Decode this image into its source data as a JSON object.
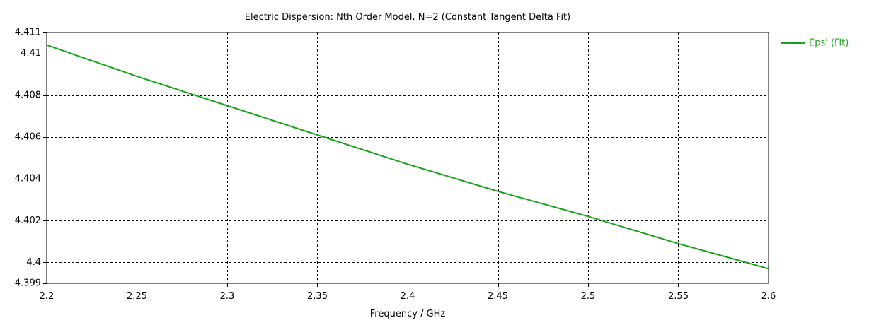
{
  "chart_data": {
    "type": "line",
    "title": "Electric Dispersion: Nth Order Model, N=2 (Constant Tangent Delta Fit)",
    "xlabel": "Frequency / GHz",
    "ylabel": "",
    "xlim": [
      2.2,
      2.6
    ],
    "ylim": [
      4.399,
      4.411
    ],
    "x_ticks": [
      2.2,
      2.25,
      2.3,
      2.35,
      2.4,
      2.45,
      2.5,
      2.55,
      2.6
    ],
    "x_tick_labels": [
      "2.2",
      "2.25",
      "2.3",
      "2.35",
      "2.4",
      "2.45",
      "2.5",
      "2.55",
      "2.6"
    ],
    "y_ticks": [
      4.399,
      4.4,
      4.402,
      4.404,
      4.406,
      4.408,
      4.41,
      4.411
    ],
    "y_tick_labels": [
      "4.399",
      "4.4",
      "4.402",
      "4.404",
      "4.406",
      "4.408",
      "4.41",
      "4.411"
    ],
    "y_grid_ticks": [
      4.4,
      4.402,
      4.404,
      4.406,
      4.408,
      4.41
    ],
    "x_grid_ticks": [
      2.25,
      2.3,
      2.35,
      2.4,
      2.45,
      2.5,
      2.55
    ],
    "grid": true,
    "grid_style": "dashed",
    "legend_position": "right",
    "series": [
      {
        "name": "Eps' (Fit)",
        "color": "#1aa31a",
        "x": [
          2.2,
          2.25,
          2.3,
          2.35,
          2.4,
          2.45,
          2.5,
          2.55,
          2.6
        ],
        "y": [
          4.4104,
          4.4089,
          4.4075,
          4.4061,
          4.4047,
          4.4034,
          4.4022,
          4.4009,
          4.3997
        ]
      }
    ]
  }
}
